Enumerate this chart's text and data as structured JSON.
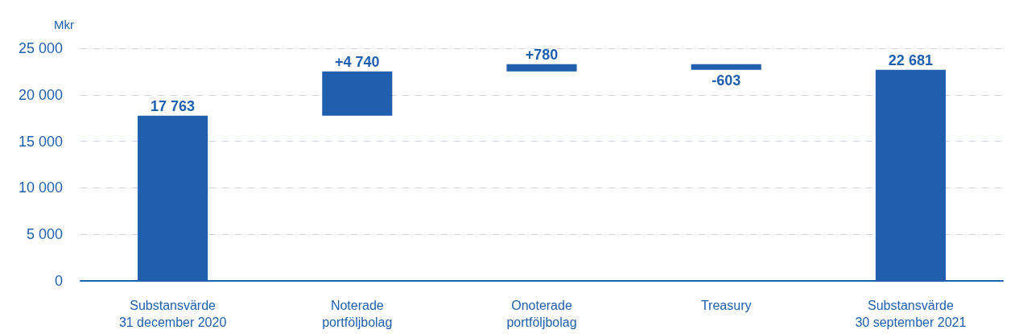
{
  "chart_data": {
    "type": "bar",
    "ylabel": "Mkr",
    "categories": [
      "Substansvärde\n31 december 2020",
      "Noterade\nportföljbolag",
      "Onoterade\nportföljbolag",
      "Treasury",
      "Substansvärde\n30 september 2021"
    ],
    "values": [
      17763,
      4740,
      780,
      -603,
      22681
    ],
    "base": [
      0,
      17763,
      22503,
      23283,
      0
    ],
    "value_labels": [
      "17 763",
      "+4 740",
      "+780",
      "-603",
      "22 681"
    ],
    "color": "#1f5fad",
    "ylim": [
      0,
      25000
    ],
    "yticks": [
      {
        "value": 0,
        "label": "0"
      },
      {
        "value": 5000,
        "label": "5 000"
      },
      {
        "value": 10000,
        "label": "10 000"
      },
      {
        "value": 15000,
        "label": "15 000"
      },
      {
        "value": 20000,
        "label": "20 000"
      },
      {
        "value": 25000,
        "label": "25 000"
      }
    ],
    "grid": "y"
  }
}
